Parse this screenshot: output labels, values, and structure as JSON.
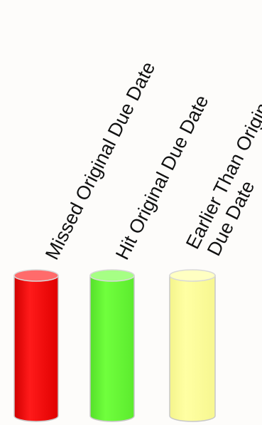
{
  "labels": {
    "missed": "Missed Original Due Date",
    "hit": "Hit Original Due Date",
    "earlier_line1": "Earlier Than Original",
    "earlier_line2": "Due Date"
  },
  "colors": {
    "missed": "#ff0000",
    "hit": "#66ff33",
    "earlier": "#ffff99"
  }
}
